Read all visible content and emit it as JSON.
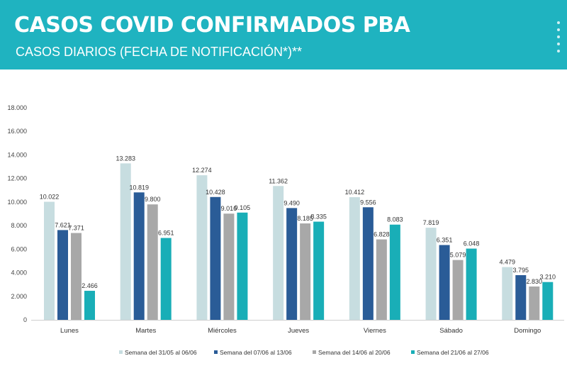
{
  "header": {
    "title": "CASOS COVID CONFIRMADOS PBA",
    "subtitle": "CASOS DIARIOS (FECHA DE NOTIFICACIÓN*)**"
  },
  "chart_data": {
    "type": "bar",
    "title": "CASOS COVID CONFIRMADOS PBA",
    "subtitle": "CASOS DIARIOS (FECHA DE NOTIFICACIÓN*)**",
    "categories": [
      "Lunes",
      "Martes",
      "Miércoles",
      "Jueves",
      "Viernes",
      "Sábado",
      "Domingo"
    ],
    "series": [
      {
        "name": "Semana del 31/05 al 06/06",
        "color": "#c7dde0",
        "values": [
          10022,
          13283,
          12274,
          11362,
          10412,
          7819,
          4479
        ],
        "labels": [
          "10.022",
          "13.283",
          "12.274",
          "11.362",
          "10.412",
          "7.819",
          "4.479"
        ]
      },
      {
        "name": "Semana del 07/06 al 13/06",
        "color": "#2a5c97",
        "values": [
          7621,
          10819,
          10428,
          9490,
          9556,
          6351,
          3795
        ],
        "labels": [
          "7.621",
          "10.819",
          "10.428",
          "9.490",
          "9.556",
          "6.351",
          "3.795"
        ]
      },
      {
        "name": "Semana del 14/06 al 20/06",
        "color": "#a8a8a8",
        "values": [
          7371,
          9800,
          9016,
          8185,
          6828,
          5079,
          2830
        ],
        "labels": [
          "7.371",
          "9.800",
          "9.016",
          "8.185",
          "6.828",
          "5.079",
          "2.830"
        ]
      },
      {
        "name": "Semana del 21/06 al 27/06",
        "color": "#19aeb7",
        "values": [
          2466,
          6951,
          9105,
          8335,
          8083,
          6048,
          3210
        ],
        "labels": [
          "2.466",
          "6.951",
          "9.105",
          "8.335",
          "8.083",
          "6.048",
          "3.210"
        ]
      }
    ],
    "yticks": [
      "0",
      "2.000",
      "4.000",
      "6.000",
      "8.000",
      "10.000",
      "12.000",
      "14.000",
      "16.000",
      "18.000"
    ],
    "ylim": [
      0,
      18000
    ],
    "grid": false,
    "legend_position": "bottom"
  }
}
